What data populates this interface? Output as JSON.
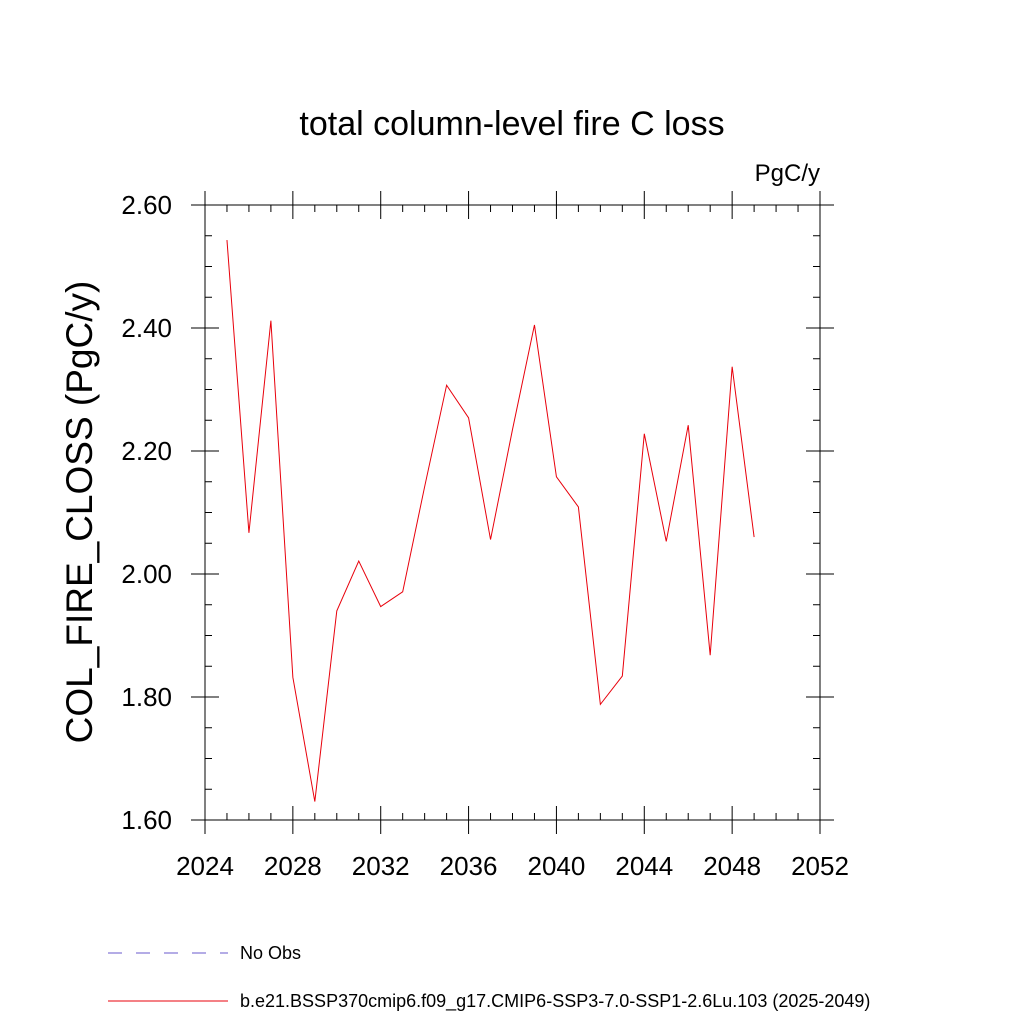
{
  "chart_data": {
    "type": "line",
    "title": "total column-level fire C loss",
    "units_label": "PgC/y",
    "ylabel": "COL_FIRE_CLOSS  (PgC/y)",
    "xlabel": "",
    "xlim": [
      2024,
      2052
    ],
    "ylim": [
      1.6,
      2.6
    ],
    "x_ticks": [
      2024,
      2028,
      2032,
      2036,
      2040,
      2044,
      2048,
      2052
    ],
    "x_tick_labels": [
      "2024",
      "2028",
      "2032",
      "2036",
      "2040",
      "2044",
      "2048",
      "2052"
    ],
    "y_ticks": [
      1.6,
      1.8,
      2.0,
      2.2,
      2.4,
      2.6
    ],
    "y_tick_labels": [
      "1.60",
      "1.80",
      "2.00",
      "2.20",
      "2.40",
      "2.60"
    ],
    "x_minor_step": 1,
    "y_minor_step": 0.05,
    "grid": false,
    "series": [
      {
        "name": "b.e21.BSSP370cmip6.f09_g17.CMIP6-SSP3-7.0-SSP1-2.6Lu.103 (2025-2049)",
        "color": "#e8000b",
        "dash": "solid",
        "x": [
          2025,
          2026,
          2027,
          2028,
          2029,
          2030,
          2031,
          2032,
          2033,
          2034,
          2035,
          2036,
          2037,
          2038,
          2039,
          2040,
          2041,
          2042,
          2043,
          2044,
          2045,
          2046,
          2047,
          2048,
          2049
        ],
        "y": [
          2.543,
          2.067,
          2.412,
          1.832,
          1.63,
          1.94,
          2.021,
          1.947,
          1.971,
          2.142,
          2.307,
          2.254,
          2.056,
          2.235,
          2.405,
          2.158,
          2.109,
          1.788,
          1.834,
          2.228,
          2.053,
          2.242,
          1.868,
          2.337,
          2.06
        ]
      }
    ],
    "legend": {
      "placement": "bottom-left",
      "entries": [
        {
          "label": "No Obs",
          "color": "#6a5acd",
          "dash": "dashed"
        },
        {
          "label": "b.e21.BSSP370cmip6.f09_g17.CMIP6-SSP3-7.0-SSP1-2.6Lu.103 (2025-2049)",
          "color": "#e8000b",
          "dash": "solid"
        }
      ]
    }
  }
}
